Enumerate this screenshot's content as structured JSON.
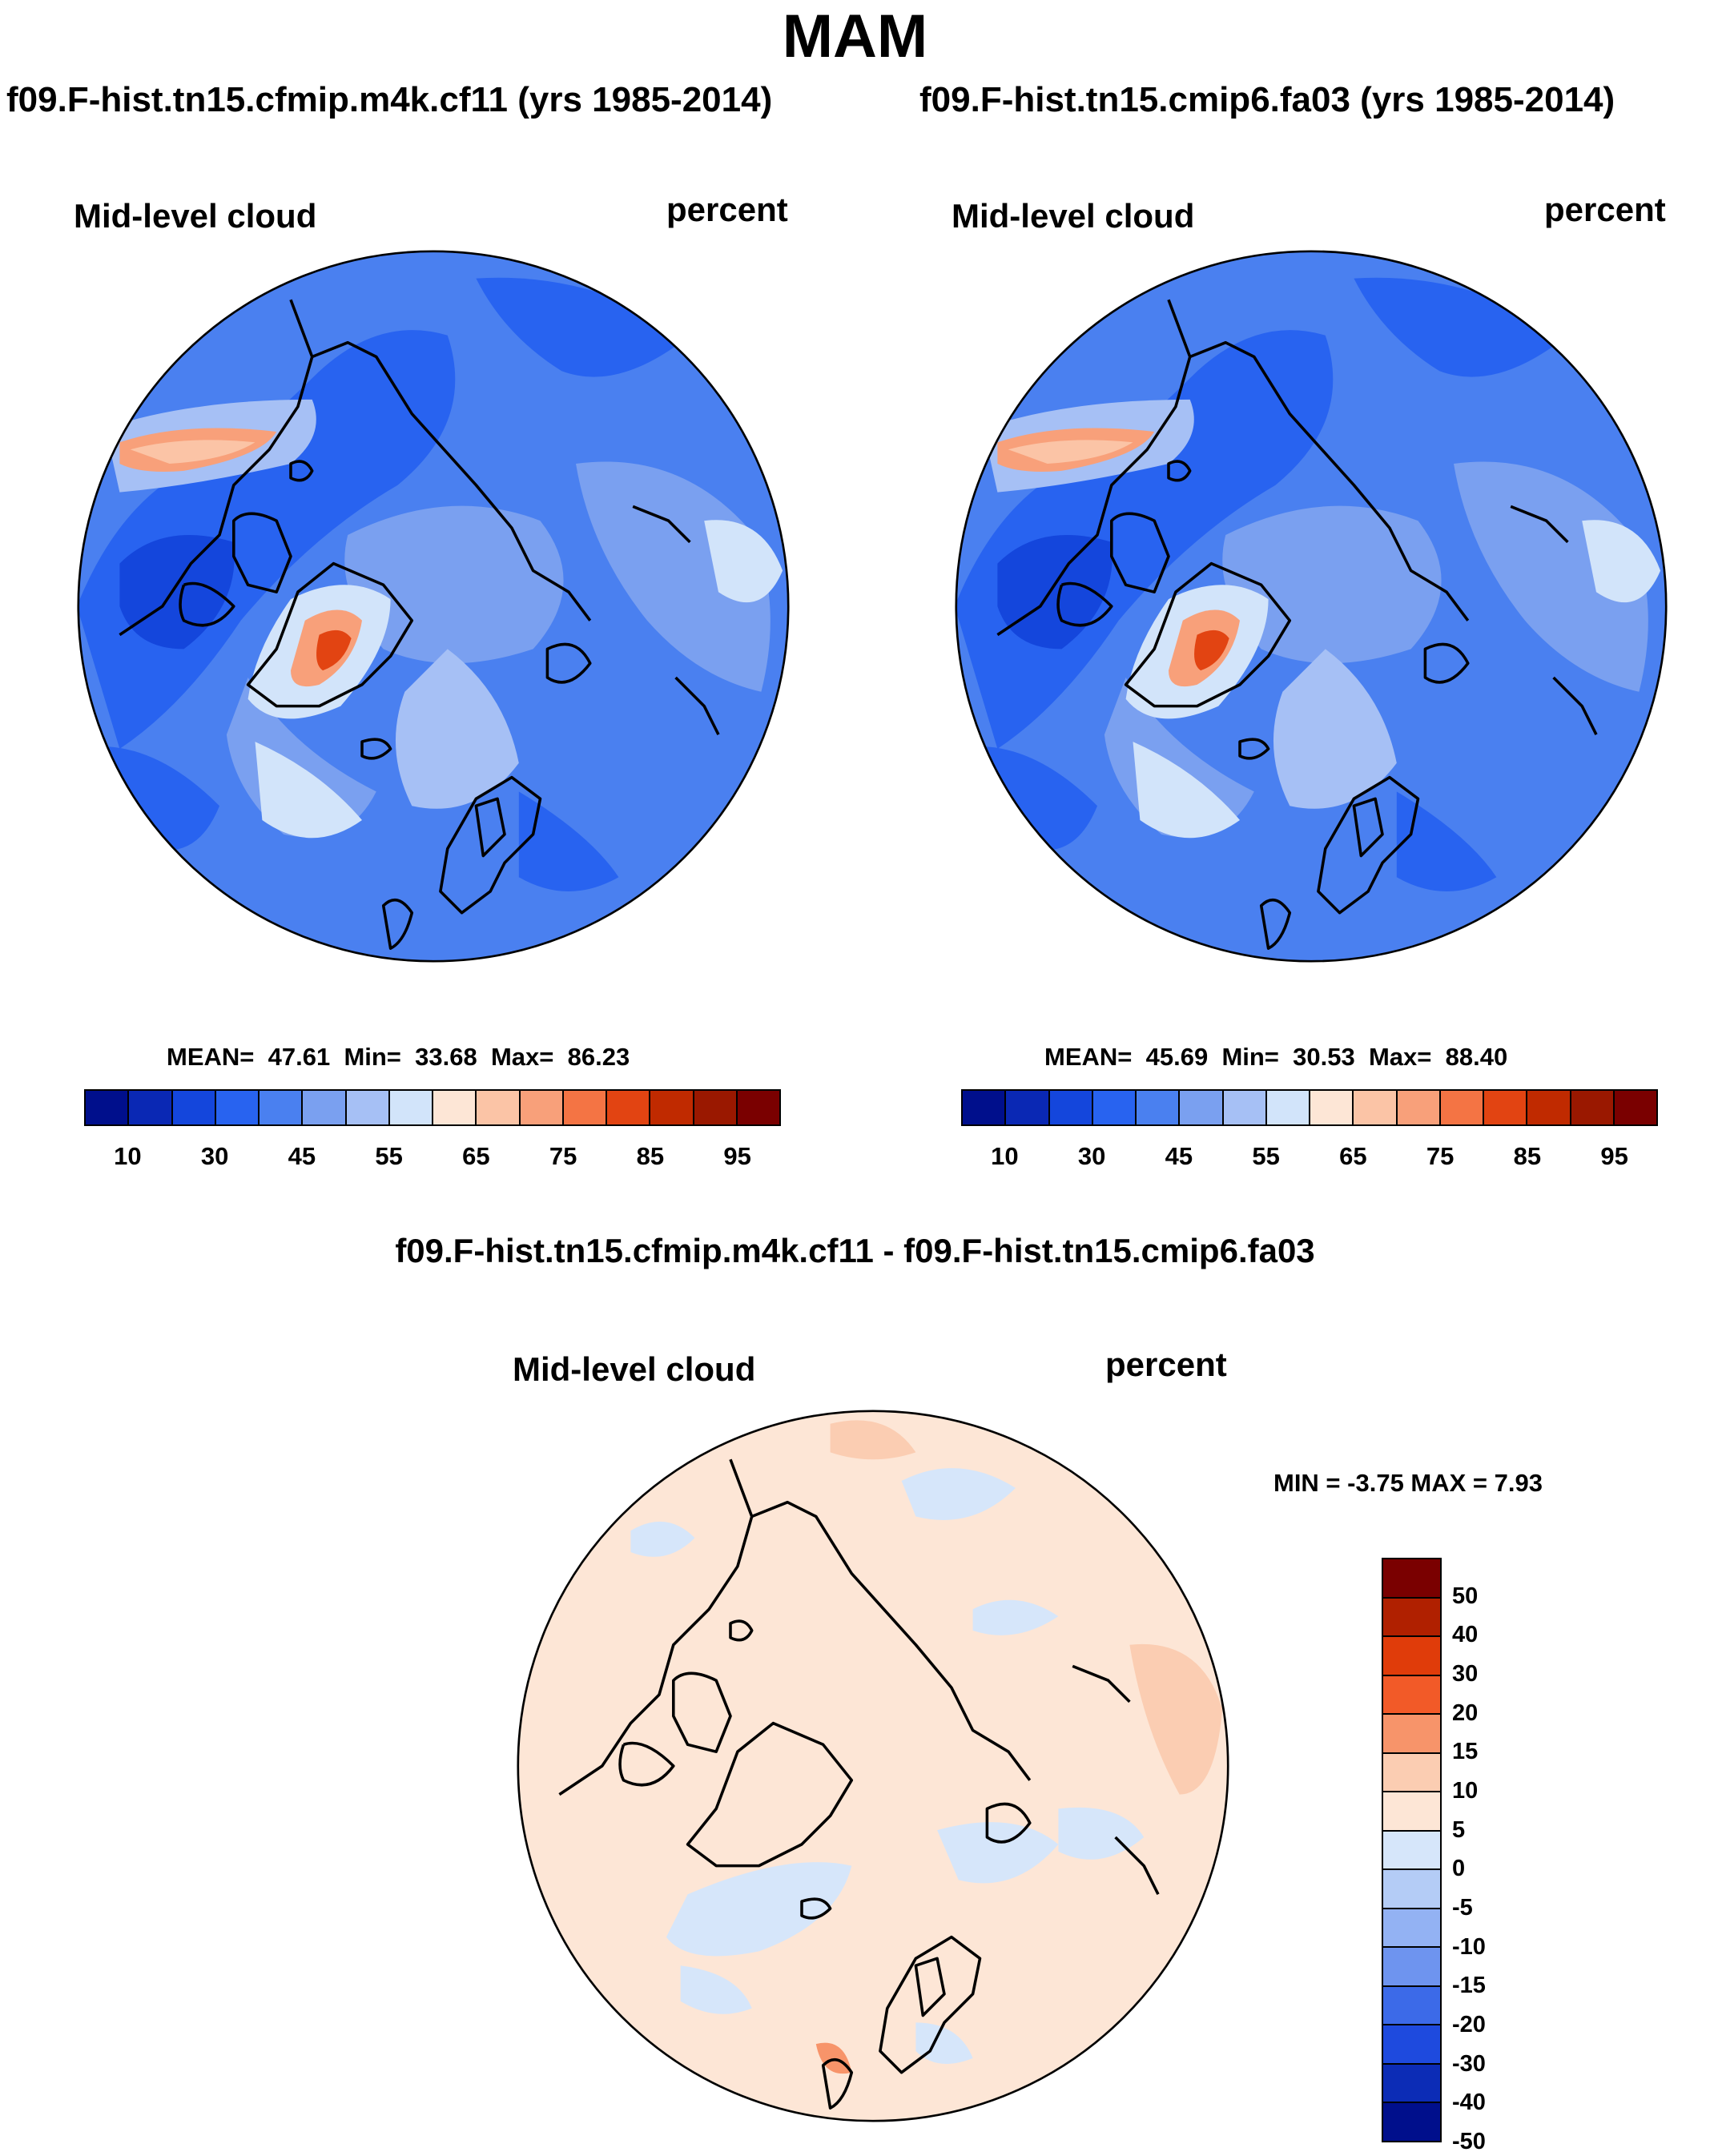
{
  "season_title": "MAM",
  "panels": [
    {
      "case_title": "f09.F-hist.tn15.cfmip.m4k.cf11 (yrs 1985-2014)",
      "variable": "Mid-level cloud",
      "units": "percent",
      "stats": {
        "mean_label": "MEAN=",
        "mean": "47.61",
        "min_label": "Min=",
        "min": "33.68",
        "max_label": "Max=",
        "max": "86.23"
      }
    },
    {
      "case_title": "f09.F-hist.tn15.cmip6.fa03 (yrs 1985-2014)",
      "variable": "Mid-level cloud",
      "units": "percent",
      "stats": {
        "mean_label": "MEAN=",
        "mean": "45.69",
        "min_label": "Min=",
        "min": "30.53",
        "max_label": "Max=",
        "max": "88.40"
      }
    }
  ],
  "abs_colorbar": {
    "colors": [
      "#000f8c",
      "#0a28b4",
      "#1446dc",
      "#2863f0",
      "#4a80f0",
      "#7aa0f0",
      "#a6c0f5",
      "#d2e4fa",
      "#fde6d6",
      "#fbc4a6",
      "#f8a07a",
      "#f47444",
      "#e24412",
      "#c02a00",
      "#9a1800",
      "#7a0000"
    ],
    "tick_labels": [
      "10",
      "30",
      "45",
      "55",
      "65",
      "75",
      "85",
      "95"
    ]
  },
  "difference": {
    "title": "f09.F-hist.tn15.cfmip.m4k.cf11 - f09.F-hist.tn15.cmip6.fa03",
    "variable": "Mid-level cloud",
    "units": "percent",
    "min_max": "MIN =  -3.75 MAX =   7.93"
  },
  "diff_colorbar": {
    "colors": [
      "#7a0000",
      "#b02000",
      "#e03c0a",
      "#f25a28",
      "#f7946a",
      "#fbcdb2",
      "#fde6d6",
      "#d6e6fa",
      "#b4ccf6",
      "#93b2f3",
      "#6e94ef",
      "#3c6ae8",
      "#1e4ade",
      "#0c2cb6",
      "#000f8c"
    ],
    "tick_labels": [
      "50",
      "40",
      "30",
      "20",
      "15",
      "10",
      "5",
      "0",
      "-5",
      "-10",
      "-15",
      "-20",
      "-30",
      "-40",
      "-50"
    ]
  },
  "chart_data": {
    "type": "polar-stereographic filled contour maps",
    "season": "MAM",
    "maps": [
      {
        "case": "f09.F-hist.tn15.cfmip.m4k.cf11",
        "years": "1985-2014",
        "variable": "Mid-level cloud",
        "units": "percent",
        "mean": 47.61,
        "min": 33.68,
        "max": 86.23
      },
      {
        "case": "f09.F-hist.tn15.cmip6.fa03",
        "years": "1985-2014",
        "variable": "Mid-level cloud",
        "units": "percent",
        "mean": 45.69,
        "min": 30.53,
        "max": 88.4
      },
      {
        "case": "f09.F-hist.tn15.cfmip.m4k.cf11 - f09.F-hist.tn15.cmip6.fa03",
        "variable": "Mid-level cloud",
        "units": "percent",
        "min": -3.75,
        "max": 7.93
      }
    ],
    "abs_levels": [
      10,
      30,
      45,
      55,
      65,
      75,
      85,
      95
    ],
    "diff_levels": [
      50,
      40,
      30,
      20,
      15,
      10,
      5,
      0,
      -5,
      -10,
      -15,
      -20,
      -30,
      -40,
      -50
    ]
  }
}
